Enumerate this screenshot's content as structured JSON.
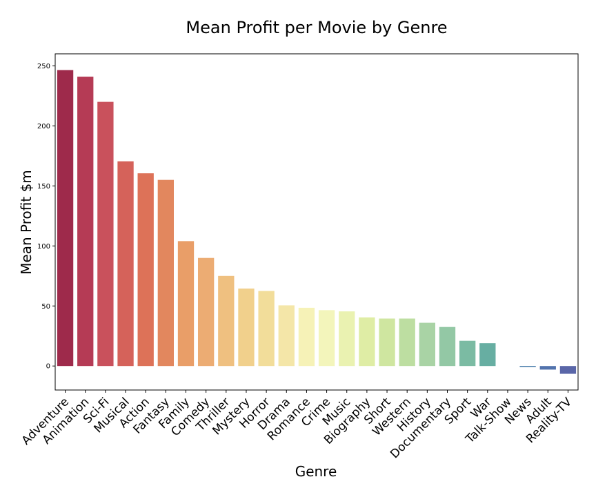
{
  "chart_data": {
    "type": "bar",
    "title": "Mean Profit per Movie by Genre",
    "xlabel": "Genre",
    "ylabel": "Mean Profit $m",
    "ylim": [
      -20,
      260
    ],
    "yticks": [
      0,
      50,
      100,
      150,
      200,
      250
    ],
    "grid": false,
    "legend": "none",
    "categories": [
      "Adventure",
      "Animation",
      "Sci-Fi",
      "Musical",
      "Action",
      "Fantasy",
      "Family",
      "Comedy",
      "Thriller",
      "Mystery",
      "Horror",
      "Drama",
      "Romance",
      "Crime",
      "Music",
      "Biography",
      "Short",
      "Western",
      "History",
      "Documentary",
      "Sport",
      "War",
      "Talk-Show",
      "News",
      "Adult",
      "Reality-TV"
    ],
    "values": [
      246.5,
      241,
      220,
      170.5,
      160.5,
      155,
      104,
      90,
      75,
      64.5,
      62.5,
      50.5,
      48.5,
      46.5,
      45.5,
      40.5,
      39.5,
      39.5,
      36,
      32.5,
      21,
      19,
      0,
      -1,
      -3,
      -6.5
    ],
    "colors": [
      "#9e2a4b",
      "#b53b55",
      "#c9515c",
      "#d5625a",
      "#dd7258",
      "#e2875e",
      "#e99e68",
      "#ecac73",
      "#efc080",
      "#f1d08c",
      "#f2dd9a",
      "#f4e6a8",
      "#f6f2b7",
      "#f3f5bb",
      "#eaf2b1",
      "#dfeda5",
      "#cfe6a0",
      "#bddea1",
      "#a9d3a5",
      "#93c8a5",
      "#7bbba3",
      "#67aea2",
      "#5a9aae",
      "#5485b0",
      "#5273ad",
      "#5a66a8"
    ]
  }
}
